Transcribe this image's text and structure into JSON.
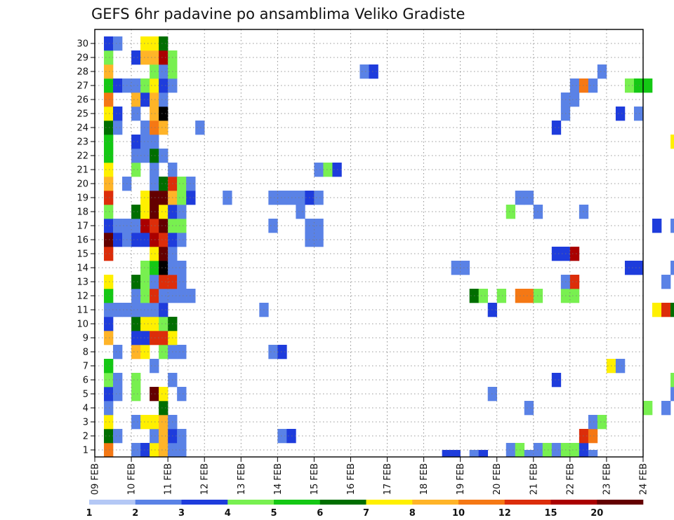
{
  "chart_data": {
    "type": "heatmap",
    "title": "GEFS 6hr padavine po ansamblima Veliko Gradiste",
    "xlabel": "",
    "ylabel": "",
    "x_ticks": [
      "09 FEB",
      "10 FEB",
      "11 FEB",
      "12 FEB",
      "13 FEB",
      "14 FEB",
      "15 FEB",
      "16 FEB",
      "17 FEB",
      "18 FEB",
      "19 FEB",
      "20 FEB",
      "21 FEB",
      "22 FEB",
      "23 FEB",
      "24 FEB"
    ],
    "y_ticks": [
      "1",
      "2",
      "3",
      "4",
      "5",
      "6",
      "7",
      "8",
      "9",
      "10",
      "11",
      "12",
      "13",
      "14",
      "15",
      "16",
      "17",
      "18",
      "19",
      "20",
      "21",
      "22",
      "23",
      "24",
      "25",
      "26",
      "27",
      "28",
      "29",
      "30"
    ],
    "x_range_steps": [
      0,
      60
    ],
    "step_hours": 6,
    "grid": true,
    "legend": {
      "position": "bottom",
      "labels": [
        "1",
        "2",
        "3",
        "4",
        "5",
        "6",
        "7",
        "8",
        "10",
        "12",
        "15",
        "20"
      ],
      "colors": [
        "#b4c8f5",
        "#5a82e6",
        "#1e3cdc",
        "#78f050",
        "#14c814",
        "#006e00",
        "#fff000",
        "#ffb428",
        "#f57814",
        "#dc2d0a",
        "#aa0000",
        "#640000"
      ]
    },
    "cells": [
      [
        1,
        0,
        8
      ],
      [
        1,
        1,
        5
      ],
      [
        1,
        2,
        6
      ],
      [
        1,
        3,
        1
      ],
      [
        1,
        4,
        2
      ],
      [
        1,
        5,
        3
      ],
      [
        1,
        6,
        4
      ],
      [
        1,
        8,
        7
      ],
      [
        1,
        9,
        2
      ],
      [
        1,
        10,
        1
      ],
      [
        1,
        11,
        4
      ],
      [
        1,
        12,
        6
      ],
      [
        1,
        14,
        9
      ],
      [
        1,
        15,
        11
      ],
      [
        1,
        16,
        2
      ],
      [
        1,
        17,
        3
      ],
      [
        1,
        18,
        9
      ],
      [
        1,
        19,
        7
      ],
      [
        1,
        20,
        6
      ],
      [
        1,
        21,
        4
      ],
      [
        1,
        22,
        4
      ],
      [
        1,
        23,
        5
      ],
      [
        1,
        24,
        6
      ],
      [
        1,
        25,
        8
      ],
      [
        1,
        26,
        4
      ],
      [
        1,
        27,
        7
      ],
      [
        1,
        28,
        3
      ],
      [
        1,
        29,
        2
      ],
      [
        2,
        1,
        1
      ],
      [
        2,
        4,
        1
      ],
      [
        2,
        5,
        1
      ],
      [
        2,
        7,
        1
      ],
      [
        2,
        10,
        1
      ],
      [
        2,
        15,
        2
      ],
      [
        2,
        16,
        1
      ],
      [
        2,
        23,
        1
      ],
      [
        2,
        24,
        2
      ],
      [
        2,
        26,
        2
      ],
      [
        2,
        29,
        1
      ],
      [
        3,
        10,
        1
      ],
      [
        3,
        15,
        1
      ],
      [
        3,
        16,
        1
      ],
      [
        3,
        19,
        1
      ],
      [
        3,
        26,
        1
      ],
      [
        4,
        -1,
        3
      ],
      [
        4,
        0,
        1
      ],
      [
        4,
        2,
        1
      ],
      [
        4,
        4,
        3
      ],
      [
        4,
        5,
        3
      ],
      [
        4,
        7,
        7
      ],
      [
        4,
        8,
        2
      ],
      [
        4,
        9,
        5
      ],
      [
        4,
        10,
        1
      ],
      [
        4,
        11,
        1
      ],
      [
        4,
        12,
        5
      ],
      [
        4,
        15,
        2
      ],
      [
        4,
        16,
        1
      ],
      [
        4,
        17,
        5
      ],
      [
        4,
        20,
        3
      ],
      [
        4,
        21,
        1
      ],
      [
        4,
        22,
        2
      ],
      [
        4,
        24,
        1
      ],
      [
        4,
        25,
        7
      ],
      [
        4,
        26,
        1
      ],
      [
        4,
        28,
        2
      ],
      [
        5,
        0,
        2
      ],
      [
        5,
        2,
        6
      ],
      [
        5,
        7,
        6
      ],
      [
        5,
        8,
        2
      ],
      [
        5,
        9,
        6
      ],
      [
        5,
        10,
        1
      ],
      [
        5,
        11,
        3
      ],
      [
        5,
        12,
        3
      ],
      [
        5,
        13,
        3
      ],
      [
        5,
        15,
        2
      ],
      [
        5,
        16,
        10
      ],
      [
        5,
        17,
        6
      ],
      [
        5,
        18,
        6
      ],
      [
        5,
        21,
        1
      ],
      [
        5,
        22,
        1
      ],
      [
        5,
        23,
        1
      ],
      [
        5,
        25,
        2
      ],
      [
        5,
        26,
        3
      ],
      [
        5,
        28,
        7
      ],
      [
        5,
        29,
        6
      ],
      [
        6,
        -1,
        12
      ],
      [
        6,
        0,
        6
      ],
      [
        6,
        1,
        1
      ],
      [
        6,
        2,
        6
      ],
      [
        6,
        4,
        11
      ],
      [
        6,
        6,
        1
      ],
      [
        6,
        8,
        9
      ],
      [
        6,
        9,
        6
      ],
      [
        6,
        10,
        1
      ],
      [
        6,
        11,
        9
      ],
      [
        6,
        12,
        1
      ],
      [
        6,
        13,
        4
      ],
      [
        6,
        14,
        6
      ],
      [
        6,
        15,
        10
      ],
      [
        6,
        16,
        9
      ],
      [
        6,
        17,
        11
      ],
      [
        6,
        18,
        11
      ],
      [
        6,
        19,
        1
      ],
      [
        6,
        20,
        1
      ],
      [
        6,
        21,
        5
      ],
      [
        6,
        22,
        1
      ],
      [
        6,
        23,
        8
      ],
      [
        6,
        24,
        7
      ],
      [
        6,
        25,
        7
      ],
      [
        6,
        26,
        6
      ],
      [
        6,
        27,
        3
      ],
      [
        6,
        28,
        7
      ],
      [
        6,
        29,
        6
      ],
      [
        7,
        -1,
        10
      ],
      [
        7,
        0,
        7
      ],
      [
        7,
        1,
        7
      ],
      [
        7,
        2,
        7
      ],
      [
        7,
        3,
        5
      ],
      [
        7,
        4,
        6
      ],
      [
        7,
        7,
        3
      ],
      [
        7,
        8,
        9
      ],
      [
        7,
        9,
        3
      ],
      [
        7,
        10,
        2
      ],
      [
        7,
        11,
        1
      ],
      [
        7,
        12,
        9
      ],
      [
        7,
        13,
        12
      ],
      [
        7,
        14,
        11
      ],
      [
        7,
        15,
        9
      ],
      [
        7,
        16,
        11
      ],
      [
        7,
        17,
        6
      ],
      [
        7,
        18,
        11
      ],
      [
        7,
        19,
        5
      ],
      [
        7,
        21,
        1
      ],
      [
        7,
        23,
        7
      ],
      [
        7,
        24,
        12
      ],
      [
        7,
        25,
        1
      ],
      [
        7,
        26,
        2
      ],
      [
        7,
        27,
        1
      ],
      [
        7,
        28,
        10
      ],
      [
        7,
        29,
        5
      ],
      [
        8,
        -1,
        2
      ],
      [
        8,
        0,
        1
      ],
      [
        8,
        1,
        2
      ],
      [
        8,
        2,
        1
      ],
      [
        8,
        5,
        1
      ],
      [
        8,
        7,
        1
      ],
      [
        8,
        8,
        6
      ],
      [
        8,
        9,
        5
      ],
      [
        8,
        11,
        1
      ],
      [
        8,
        12,
        9
      ],
      [
        8,
        13,
        1
      ],
      [
        8,
        14,
        1
      ],
      [
        8,
        15,
        2
      ],
      [
        8,
        16,
        3
      ],
      [
        8,
        17,
        2
      ],
      [
        8,
        18,
        7
      ],
      [
        8,
        19,
        9
      ],
      [
        8,
        20,
        1
      ],
      [
        8,
        26,
        1
      ],
      [
        8,
        27,
        3
      ],
      [
        8,
        28,
        3
      ],
      [
        9,
        -1,
        1
      ],
      [
        9,
        0,
        1
      ],
      [
        9,
        1,
        1
      ],
      [
        9,
        4,
        1
      ],
      [
        9,
        7,
        1
      ],
      [
        9,
        11,
        1
      ],
      [
        9,
        12,
        1
      ],
      [
        9,
        13,
        1
      ],
      [
        9,
        15,
        1
      ],
      [
        9,
        16,
        3
      ],
      [
        9,
        17,
        1
      ],
      [
        9,
        18,
        3
      ],
      [
        9,
        19,
        3
      ],
      [
        10,
        11,
        1
      ],
      [
        10,
        18,
        2
      ],
      [
        10,
        19,
        1
      ],
      [
        11,
        23,
        1
      ],
      [
        14,
        18,
        1
      ],
      [
        18,
        10,
        1
      ],
      [
        19,
        7,
        1
      ],
      [
        19,
        16,
        1
      ],
      [
        19,
        18,
        1
      ],
      [
        20,
        1,
        1
      ],
      [
        20,
        7,
        2
      ],
      [
        20,
        18,
        1
      ],
      [
        21,
        1,
        2
      ],
      [
        21,
        18,
        1
      ],
      [
        22,
        17,
        1
      ],
      [
        22,
        18,
        1
      ],
      [
        23,
        15,
        1
      ],
      [
        23,
        16,
        1
      ],
      [
        23,
        18,
        2
      ],
      [
        24,
        15,
        1
      ],
      [
        24,
        16,
        1
      ],
      [
        24,
        18,
        1
      ],
      [
        24,
        20,
        1
      ],
      [
        25,
        20,
        3
      ],
      [
        26,
        20,
        2
      ],
      [
        29,
        27,
        1
      ],
      [
        30,
        27,
        2
      ],
      [
        38,
        -1,
        2
      ],
      [
        39,
        -1,
        2
      ],
      [
        39,
        13,
        1
      ],
      [
        40,
        13,
        1
      ],
      [
        41,
        -1,
        1
      ],
      [
        41,
        11,
        5
      ],
      [
        42,
        -1,
        2
      ],
      [
        42,
        11,
        3
      ],
      [
        43,
        4,
        1
      ],
      [
        43,
        10,
        2
      ],
      [
        44,
        11,
        3
      ],
      [
        45,
        0,
        1
      ],
      [
        45,
        17,
        3
      ],
      [
        46,
        0,
        3
      ],
      [
        46,
        11,
        8
      ],
      [
        46,
        18,
        1
      ],
      [
        47,
        -1,
        1
      ],
      [
        47,
        3,
        1
      ],
      [
        47,
        11,
        8
      ],
      [
        47,
        18,
        1
      ],
      [
        48,
        0,
        1
      ],
      [
        48,
        11,
        3
      ],
      [
        48,
        17,
        1
      ],
      [
        49,
        0,
        3
      ],
      [
        50,
        0,
        1
      ],
      [
        50,
        5,
        2
      ],
      [
        50,
        14,
        2
      ],
      [
        50,
        23,
        2
      ],
      [
        51,
        -1,
        11
      ],
      [
        51,
        0,
        3
      ],
      [
        51,
        11,
        3
      ],
      [
        51,
        12,
        1
      ],
      [
        51,
        14,
        2
      ],
      [
        51,
        24,
        1
      ],
      [
        51,
        25,
        1
      ],
      [
        52,
        -1,
        12
      ],
      [
        52,
        0,
        3
      ],
      [
        52,
        11,
        3
      ],
      [
        52,
        12,
        9
      ],
      [
        52,
        14,
        10
      ],
      [
        52,
        25,
        1
      ],
      [
        52,
        26,
        1
      ],
      [
        53,
        -1,
        1
      ],
      [
        53,
        0,
        2
      ],
      [
        53,
        1,
        9
      ],
      [
        53,
        17,
        1
      ],
      [
        53,
        26,
        8
      ],
      [
        54,
        -1,
        1
      ],
      [
        54,
        1,
        8
      ],
      [
        54,
        2,
        1
      ],
      [
        54,
        26,
        1
      ],
      [
        55,
        2,
        3
      ],
      [
        55,
        27,
        1
      ],
      [
        56,
        6,
        6
      ],
      [
        57,
        6,
        1
      ],
      [
        57,
        24,
        2
      ],
      [
        58,
        13,
        2
      ],
      [
        58,
        26,
        3
      ],
      [
        59,
        13,
        2
      ],
      [
        59,
        26,
        4
      ],
      [
        59,
        24,
        1
      ],
      [
        60,
        3,
        3
      ],
      [
        60,
        26,
        4
      ],
      [
        61,
        10,
        6
      ],
      [
        61,
        16,
        2
      ],
      [
        62,
        3,
        1
      ],
      [
        62,
        10,
        9
      ],
      [
        62,
        12,
        1
      ],
      [
        63,
        4,
        1
      ],
      [
        63,
        5,
        3
      ],
      [
        63,
        10,
        5
      ],
      [
        63,
        13,
        1
      ],
      [
        63,
        16,
        1
      ],
      [
        63,
        22,
        6
      ],
      [
        64,
        2,
        9
      ],
      [
        64,
        4,
        2
      ],
      [
        64,
        5,
        2
      ],
      [
        64,
        6,
        3
      ],
      [
        64,
        13,
        1
      ],
      [
        64,
        24,
        1
      ],
      [
        64,
        25,
        1
      ],
      [
        65,
        4,
        2
      ],
      [
        65,
        5,
        2
      ],
      [
        65,
        13,
        2
      ],
      [
        65,
        16,
        3
      ],
      [
        65,
        26,
        1
      ],
      [
        66,
        4,
        2
      ],
      [
        66,
        5,
        3
      ],
      [
        66,
        6,
        1
      ],
      [
        66,
        25,
        6
      ],
      [
        66,
        26,
        9
      ]
    ]
  }
}
